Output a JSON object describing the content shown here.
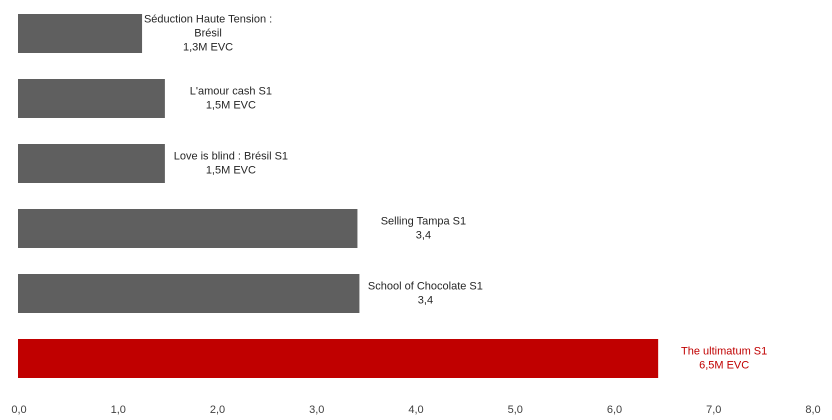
{
  "chart_data": {
    "type": "bar",
    "orientation": "horizontal",
    "title": "",
    "xlabel": "",
    "ylabel": "",
    "xlim": [
      0,
      8
    ],
    "x_ticks": [
      "0,0",
      "1,0",
      "2,0",
      "3,0",
      "4,0",
      "5,0",
      "6,0",
      "7,0",
      "8,0"
    ],
    "grid": false,
    "colors": {
      "default": "#5f5f5f",
      "highlight": "#c00000",
      "label": "#262626"
    },
    "bars": [
      {
        "category": "Séduction Haute Tension : Brésil",
        "value": 1.25,
        "label_lines": [
          "Séduction Haute Tension :",
          "Brésil",
          "1,3M EVC"
        ],
        "highlight": false
      },
      {
        "category": "L'amour cash S1",
        "value": 1.48,
        "label_lines": [
          "L'amour cash S1",
          "1,5M EVC"
        ],
        "highlight": false
      },
      {
        "category": "Love is blind : Brésil S1",
        "value": 1.48,
        "label_lines": [
          "Love is blind : Brésil S1",
          "1,5M EVC"
        ],
        "highlight": false
      },
      {
        "category": "Selling Tampa S1",
        "value": 3.42,
        "label_lines": [
          "Selling Tampa S1",
          "3,4"
        ],
        "highlight": false
      },
      {
        "category": "School of Chocolate S1",
        "value": 3.44,
        "label_lines": [
          "School of Chocolate S1",
          "3,4"
        ],
        "highlight": false
      },
      {
        "category": "The ultimatum S1",
        "value": 6.45,
        "label_lines": [
          "The ultimatum S1",
          "6,5M EVC"
        ],
        "highlight": true
      }
    ]
  }
}
